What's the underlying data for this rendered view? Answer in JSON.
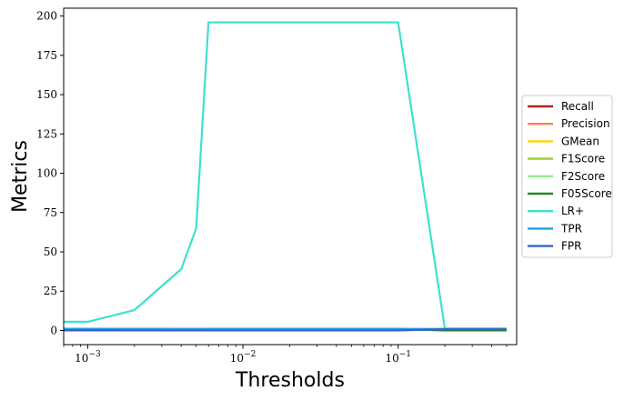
{
  "chart_data": {
    "type": "line",
    "title": "",
    "xlabel": "Thresholds",
    "ylabel": "Metrics",
    "xscale": "log",
    "xlim": [
      0.0007,
      0.58
    ],
    "ylim": [
      -9,
      205
    ],
    "grid": false,
    "legend_position": "outside-right",
    "x_ticks": [
      {
        "value": 0.001,
        "base": "10",
        "exp": "−3"
      },
      {
        "value": 0.01,
        "base": "10",
        "exp": "−2"
      },
      {
        "value": 0.1,
        "base": "10",
        "exp": "−1"
      }
    ],
    "y_ticks": [
      {
        "value": 0,
        "label": "0"
      },
      {
        "value": 25,
        "label": "25"
      },
      {
        "value": 50,
        "label": "50"
      },
      {
        "value": 75,
        "label": "75"
      },
      {
        "value": 100,
        "label": "100"
      },
      {
        "value": 125,
        "label": "125"
      },
      {
        "value": 150,
        "label": "150"
      },
      {
        "value": 175,
        "label": "175"
      },
      {
        "value": 200,
        "label": "200"
      }
    ],
    "series": [
      {
        "name": "Recall",
        "color": "#b22222",
        "points": [
          [
            0.0007,
            1.0
          ],
          [
            0.001,
            1.0
          ],
          [
            0.002,
            1.0
          ],
          [
            0.004,
            1.0
          ],
          [
            0.005,
            1.0
          ],
          [
            0.006,
            1.0
          ],
          [
            0.1,
            1.0
          ],
          [
            0.2,
            0.05
          ],
          [
            0.5,
            0.05
          ]
        ]
      },
      {
        "name": "Precision",
        "color": "#ff7f50",
        "points": [
          [
            0.0007,
            0.03
          ],
          [
            0.001,
            0.03
          ],
          [
            0.002,
            0.06
          ],
          [
            0.004,
            0.17
          ],
          [
            0.005,
            0.25
          ],
          [
            0.006,
            1.0
          ],
          [
            0.1,
            1.0
          ],
          [
            0.2,
            0.0
          ],
          [
            0.5,
            0.0
          ]
        ]
      },
      {
        "name": "GMean",
        "color": "#ffd700",
        "points": [
          [
            0.0007,
            0.45
          ],
          [
            0.001,
            0.5
          ],
          [
            0.002,
            0.7
          ],
          [
            0.004,
            0.9
          ],
          [
            0.005,
            0.95
          ],
          [
            0.006,
            1.0
          ],
          [
            0.1,
            1.0
          ],
          [
            0.2,
            0.2
          ],
          [
            0.5,
            0.2
          ]
        ]
      },
      {
        "name": "F1Score",
        "color": "#9acd32",
        "points": [
          [
            0.0007,
            0.06
          ],
          [
            0.001,
            0.06
          ],
          [
            0.002,
            0.11
          ],
          [
            0.004,
            0.29
          ],
          [
            0.005,
            0.4
          ],
          [
            0.006,
            1.0
          ],
          [
            0.1,
            1.0
          ],
          [
            0.2,
            0.0
          ],
          [
            0.5,
            0.0
          ]
        ]
      },
      {
        "name": "F2Score",
        "color": "#90ee90",
        "points": [
          [
            0.0007,
            0.13
          ],
          [
            0.001,
            0.14
          ],
          [
            0.002,
            0.24
          ],
          [
            0.004,
            0.5
          ],
          [
            0.005,
            0.62
          ],
          [
            0.006,
            1.0
          ],
          [
            0.1,
            1.0
          ],
          [
            0.2,
            0.0
          ],
          [
            0.5,
            0.0
          ]
        ]
      },
      {
        "name": "F05Score",
        "color": "#228b22",
        "points": [
          [
            0.0007,
            0.04
          ],
          [
            0.001,
            0.04
          ],
          [
            0.002,
            0.07
          ],
          [
            0.004,
            0.2
          ],
          [
            0.005,
            0.29
          ],
          [
            0.006,
            1.0
          ],
          [
            0.1,
            1.0
          ],
          [
            0.2,
            0.0
          ],
          [
            0.5,
            0.0
          ]
        ]
      },
      {
        "name": "LR+",
        "color": "#40e0d0",
        "points": [
          [
            0.0007,
            5.5
          ],
          [
            0.001,
            5.5
          ],
          [
            0.002,
            13
          ],
          [
            0.004,
            39
          ],
          [
            0.005,
            65
          ],
          [
            0.006,
            196
          ],
          [
            0.1,
            196
          ],
          [
            0.2,
            1.2
          ],
          [
            0.5,
            1.2
          ]
        ]
      },
      {
        "name": "TPR",
        "color": "#1e9fe6",
        "points": [
          [
            0.0007,
            1.0
          ],
          [
            0.001,
            1.0
          ],
          [
            0.002,
            1.0
          ],
          [
            0.004,
            1.0
          ],
          [
            0.005,
            1.0
          ],
          [
            0.006,
            1.0
          ],
          [
            0.1,
            1.0
          ],
          [
            0.2,
            1.0
          ],
          [
            0.5,
            1.0
          ]
        ]
      },
      {
        "name": "FPR",
        "color": "#3a62c9",
        "points": [
          [
            0.0007,
            0.18
          ],
          [
            0.001,
            0.18
          ],
          [
            0.002,
            0.08
          ],
          [
            0.004,
            0.03
          ],
          [
            0.005,
            0.02
          ],
          [
            0.006,
            0.005
          ],
          [
            0.1,
            0.005
          ],
          [
            0.2,
            0.8
          ],
          [
            0.5,
            0.8
          ]
        ]
      }
    ]
  }
}
